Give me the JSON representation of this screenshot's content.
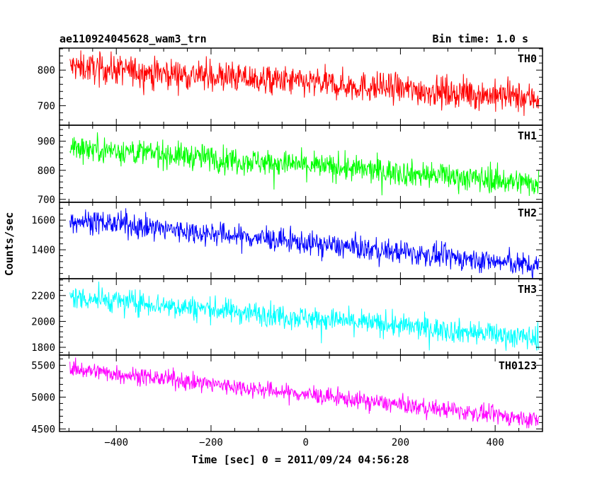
{
  "chart_data": {
    "type": "line",
    "title": "ae110924045628_wam3_trn",
    "bin_time": "Bin time: 1.0 s",
    "xlabel": "Time [sec] 0 = 2011/09/24 04:56:28",
    "ylabel": "Counts/sec",
    "xlim": [
      -520,
      500
    ],
    "x_range": [
      -498,
      492
    ],
    "xticks": [
      -400,
      -200,
      0,
      200,
      400
    ],
    "xtick_labels": [
      "−400",
      "−200",
      "0",
      "200",
      "400"
    ],
    "panels": [
      {
        "name": "TH0",
        "color": "#ff0000",
        "ylim": [
          645,
          862
        ],
        "yticks": [
          700,
          800
        ],
        "ytick_labels": [
          "700",
          "800"
        ],
        "start_mean": 810,
        "end_mean": 720,
        "noise": 30
      },
      {
        "name": "TH1",
        "color": "#00ff00",
        "ylim": [
          690,
          955
        ],
        "yticks": [
          700,
          800,
          900
        ],
        "ytick_labels": [
          "700",
          "800",
          "900"
        ],
        "start_mean": 880,
        "end_mean": 755,
        "noise": 32
      },
      {
        "name": "TH2",
        "color": "#0000ff",
        "ylim": [
          1205,
          1720
        ],
        "yticks": [
          1400,
          1600
        ],
        "ytick_labels": [
          "1400",
          "1600"
        ],
        "start_mean": 1605,
        "end_mean": 1290,
        "noise": 55
      },
      {
        "name": "TH3",
        "color": "#00ffff",
        "ylim": [
          1740,
          2330
        ],
        "yticks": [
          1800,
          2000,
          2200
        ],
        "ytick_labels": [
          "1800",
          "2000",
          "2200"
        ],
        "start_mean": 2190,
        "end_mean": 1870,
        "noise": 65
      },
      {
        "name": "TH0123",
        "color": "#ff00ff",
        "ylim": [
          4460,
          5660
        ],
        "yticks": [
          4500,
          5000,
          5500
        ],
        "ytick_labels": [
          "4500",
          "5000",
          "5500"
        ],
        "start_mean": 5450,
        "end_mean": 4640,
        "noise": 95
      }
    ]
  }
}
